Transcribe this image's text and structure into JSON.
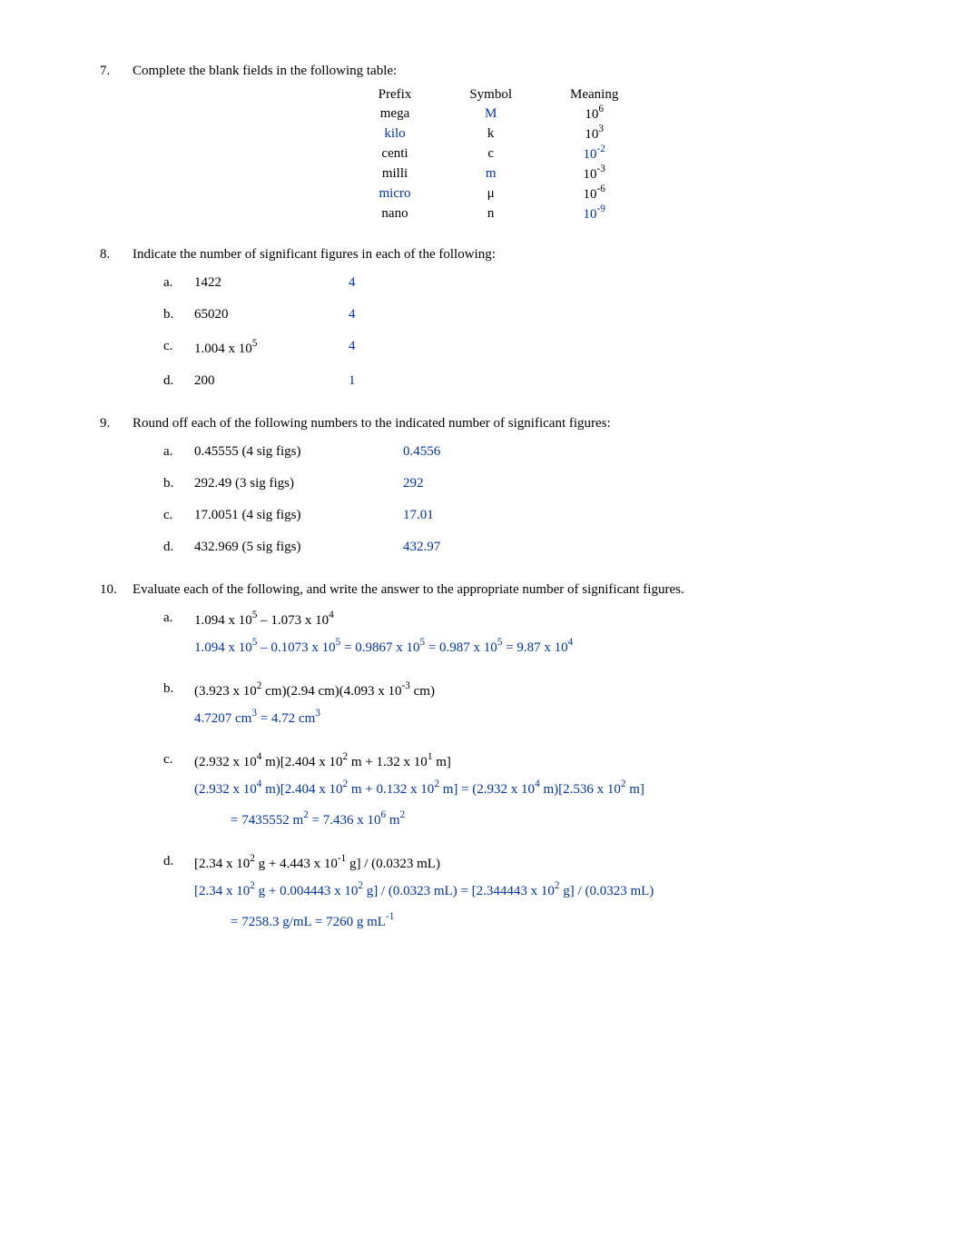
{
  "q7": {
    "prompt": "Complete the blank fields in the following table:",
    "headers": {
      "c1": "Prefix",
      "c2": "Symbol",
      "c3": "Meaning"
    },
    "rows": [
      {
        "prefix": "mega",
        "symbol": "M",
        "meaning_base": "10",
        "meaning_exp": "6",
        "prefix_blue": false,
        "symbol_blue": true,
        "meaning_blue": false
      },
      {
        "prefix": "kilo",
        "symbol": "k",
        "meaning_base": "10",
        "meaning_exp": "3",
        "prefix_blue": true,
        "symbol_blue": false,
        "meaning_blue": false
      },
      {
        "prefix": "centi",
        "symbol": "c",
        "meaning_base": "10",
        "meaning_exp": "-2",
        "prefix_blue": false,
        "symbol_blue": false,
        "meaning_blue": true
      },
      {
        "prefix": "milli",
        "symbol": "m",
        "meaning_base": "10",
        "meaning_exp": "-3",
        "prefix_blue": false,
        "symbol_blue": true,
        "meaning_blue": false
      },
      {
        "prefix": "micro",
        "symbol": "μ",
        "meaning_base": "10",
        "meaning_exp": "-6",
        "prefix_blue": true,
        "symbol_blue": false,
        "meaning_blue": false
      },
      {
        "prefix": "nano",
        "symbol": "n",
        "meaning_base": "10",
        "meaning_exp": "-9",
        "prefix_blue": false,
        "symbol_blue": false,
        "meaning_blue": true
      }
    ]
  },
  "q8": {
    "prompt": "Indicate the number of significant figures in each of the following:",
    "items": [
      {
        "letter": "a.",
        "value": "1422",
        "ans": "4"
      },
      {
        "letter": "b.",
        "value": "65020",
        "ans": "4"
      },
      {
        "letter": "c.",
        "value": "1.004 x 10",
        "exp": "5",
        "ans": "4"
      },
      {
        "letter": "d.",
        "value": "200",
        "ans": "1"
      }
    ]
  },
  "q9": {
    "prompt": "Round off each of the following numbers to the indicated number of significant figures:",
    "items": [
      {
        "letter": "a.",
        "value": "0.45555 (4 sig figs)",
        "ans": "0.4556"
      },
      {
        "letter": "b.",
        "value": "292.49 (3 sig figs)",
        "ans": "292"
      },
      {
        "letter": "c.",
        "value": "17.0051 (4 sig figs)",
        "ans": "17.01"
      },
      {
        "letter": "d.",
        "value": "432.969 (5 sig figs)",
        "ans": "432.97"
      }
    ]
  },
  "q10": {
    "prompt": "Evaluate each of the following, and write the answer to the appropriate number of significant figures.",
    "a": {
      "letter": "a.",
      "expr_p1": "1.094 x 10",
      "expr_e1": "5",
      "expr_mid": " – 1.073 x 10",
      "expr_e2": "4",
      "work_p1": "1.094 x 10",
      "work_e1": "5",
      "work_p2": " – 0.1073 x 10",
      "work_e2": "5",
      "work_p3": " = 0.9867 x 10",
      "work_e3": "5",
      "work_p4": " = 0.987 x 10",
      "work_e4": "5",
      "work_p5": " = 9.87 x 10",
      "work_e5": "4"
    },
    "b": {
      "letter": "b.",
      "expr_p1": "(3.923 x 10",
      "expr_e1": "2",
      "expr_p2": " cm)(2.94 cm)(4.093 x 10",
      "expr_e2": "-3",
      "expr_p3": " cm)",
      "work_p1": "4.7207 cm",
      "work_e1": "3",
      "work_p2": " = 4.72 cm",
      "work_e2": "3"
    },
    "c": {
      "letter": "c.",
      "expr_p1": "(2.932 x 10",
      "expr_e1": "4",
      "expr_p2": " m)[2.404 x 10",
      "expr_e2": "2",
      "expr_p3": " m + 1.32 x 10",
      "expr_e3": "1",
      "expr_p4": " m]",
      "work_p1": "(2.932 x 10",
      "work_e1": "4",
      "work_p2": " m)[2.404 x 10",
      "work_e2": "2",
      "work_p3": " m + 0.132 x 10",
      "work_e3": "2",
      "work_p4": " m] = (2.932 x 10",
      "work_e4": "4",
      "work_p5": " m)[2.536 x 10",
      "work_e5": "2",
      "work_p6": " m]",
      "line2_p1": "= 7435552 m",
      "line2_e1": "2",
      "line2_p2": " = 7.436 x 10",
      "line2_e2": "6",
      "line2_p3": " m",
      "line2_e3": "2"
    },
    "d": {
      "letter": "d.",
      "expr_p1": "[2.34 x 10",
      "expr_e1": "2",
      "expr_p2": " g + 4.443 x 10",
      "expr_e2": "-1",
      "expr_p3": " g] / (0.0323 mL)",
      "work_p1": "[2.34 x 10",
      "work_e1": "2",
      "work_p2": " g + 0.004443 x 10",
      "work_e2": "2",
      "work_p3": " g] / (0.0323 mL) = [2.344443 x 10",
      "work_e3": "2",
      "work_p4": " g] / (0.0323 mL)",
      "line2_p1": "= 7258.3 g/mL = 7260 g mL",
      "line2_e1": "-1"
    }
  }
}
